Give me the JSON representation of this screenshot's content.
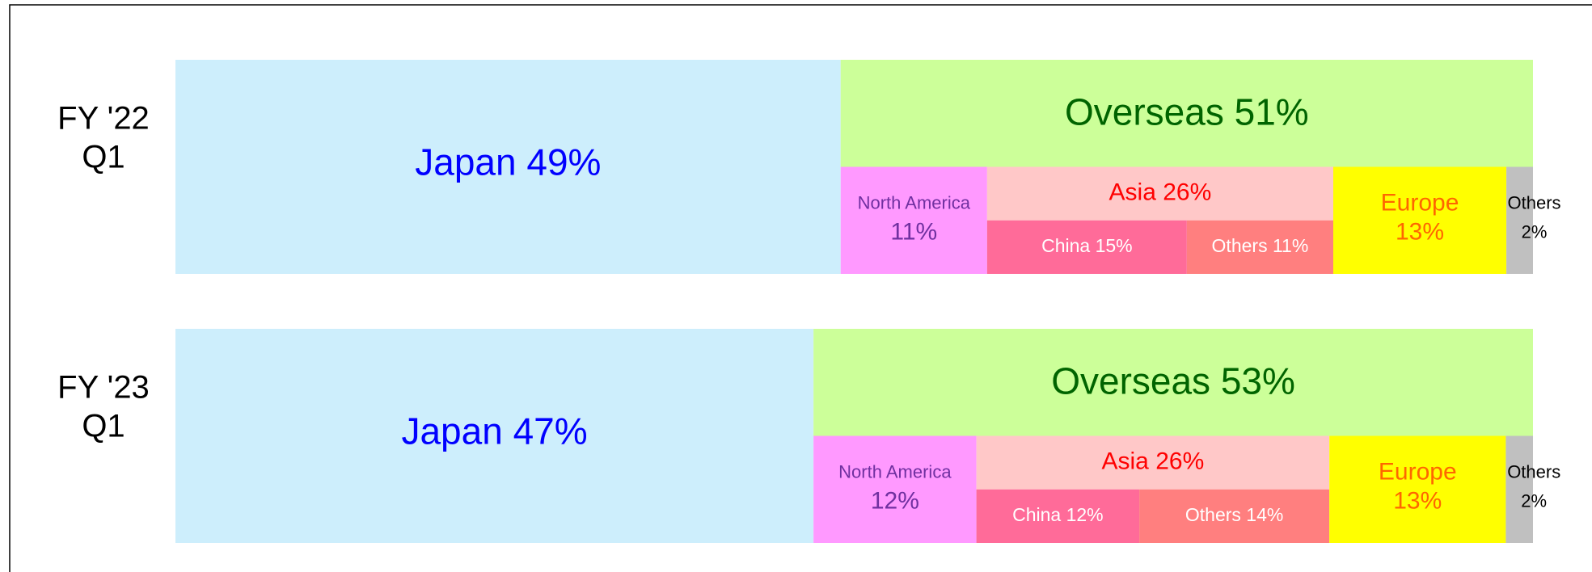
{
  "chart_data": {
    "type": "nested-bar",
    "rows": [
      {
        "label_lines": [
          "FY '22",
          "Q1"
        ],
        "segments": [
          {
            "label": "Japan 49%",
            "value": 49,
            "color": "#cdeefc",
            "text_color": "#0000ff"
          },
          {
            "label": "Overseas 51%",
            "value": 51,
            "color": "#ccff99",
            "text_color": "#006400",
            "children": [
              {
                "label_lines": [
                  "North America",
                  "11%"
                ],
                "value": 11,
                "color": "#ff99ff",
                "text_color": "#7030a0"
              },
              {
                "label": "Asia 26%",
                "value": 26,
                "color": "#ffc8c8",
                "text_color": "#ff0000",
                "children": [
                  {
                    "label": "China 15%",
                    "value": 15,
                    "color": "#ff6b99",
                    "text_color": "#ffffff"
                  },
                  {
                    "label": "Others 11%",
                    "value": 11,
                    "color": "#ff7f7f",
                    "text_color": "#ffffff"
                  }
                ]
              },
              {
                "label_lines": [
                  "Europe",
                  "13%"
                ],
                "value": 13,
                "color": "#ffff00",
                "text_color": "#ff6600"
              },
              {
                "label_lines": [
                  "Others",
                  "2%"
                ],
                "value": 2,
                "color": "#c0c0c0",
                "text_color": "#000000"
              }
            ]
          }
        ]
      },
      {
        "label_lines": [
          "FY '23",
          "Q1"
        ],
        "segments": [
          {
            "label": "Japan 47%",
            "value": 47,
            "color": "#cdeefc",
            "text_color": "#0000ff"
          },
          {
            "label": "Overseas 53%",
            "value": 53,
            "color": "#ccff99",
            "text_color": "#006400",
            "children": [
              {
                "label_lines": [
                  "North America",
                  "12%"
                ],
                "value": 12,
                "color": "#ff99ff",
                "text_color": "#7030a0"
              },
              {
                "label": "Asia 26%",
                "value": 26,
                "color": "#ffc8c8",
                "text_color": "#ff0000",
                "children": [
                  {
                    "label": "China 12%",
                    "value": 12,
                    "color": "#ff6b99",
                    "text_color": "#ffffff"
                  },
                  {
                    "label": "Others 14%",
                    "value": 14,
                    "color": "#ff7f7f",
                    "text_color": "#ffffff"
                  }
                ]
              },
              {
                "label_lines": [
                  "Europe",
                  "13%"
                ],
                "value": 13,
                "color": "#ffff00",
                "text_color": "#ff6600"
              },
              {
                "label_lines": [
                  "Others",
                  "2%"
                ],
                "value": 2,
                "color": "#c0c0c0",
                "text_color": "#000000"
              }
            ]
          }
        ]
      }
    ]
  }
}
